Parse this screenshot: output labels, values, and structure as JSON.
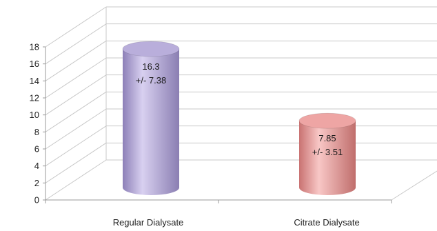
{
  "chart_data": {
    "type": "bar",
    "style": "3d-cylinder",
    "categories": [
      "Regular Dialysate",
      "Citrate Dialysate"
    ],
    "values": [
      16.3,
      7.85
    ],
    "errors": [
      7.38,
      3.51
    ],
    "value_labels": [
      "16.3",
      "7.85"
    ],
    "error_labels": [
      "+/- 7.38",
      "+/- 3.51"
    ],
    "yticks": [
      "0",
      "2",
      "4",
      "6",
      "8",
      "10",
      "12",
      "14",
      "16",
      "18"
    ],
    "ylim": [
      0,
      18
    ],
    "grid": true,
    "legend": "none",
    "colors": {
      "regular": "#b9aedb",
      "citrate": "#eea5a4",
      "grid": "#c8c8c8",
      "axis": "#999999"
    }
  }
}
